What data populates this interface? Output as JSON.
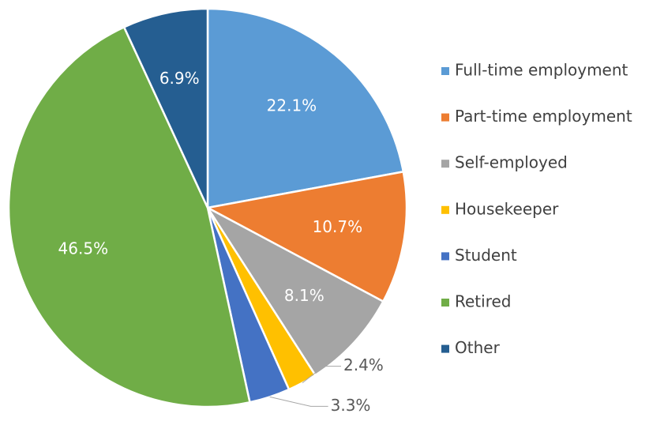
{
  "chart_data": {
    "type": "pie",
    "categories": [
      "Full-time employment",
      "Part-time employment",
      "Self-employed",
      "Housekeeper",
      "Student",
      "Retired",
      "Other"
    ],
    "values": [
      22.1,
      10.7,
      8.1,
      2.4,
      3.3,
      46.5,
      6.9
    ],
    "value_labels": [
      "22.1%",
      "10.7%",
      "8.1%",
      "2.4%",
      "3.3%",
      "46.5%",
      "6.9%"
    ],
    "colors": [
      "#5b9bd5",
      "#ed7d31",
      "#a5a5a5",
      "#ffc000",
      "#4472c4",
      "#70ad47",
      "#255e91"
    ],
    "legend": "right"
  }
}
